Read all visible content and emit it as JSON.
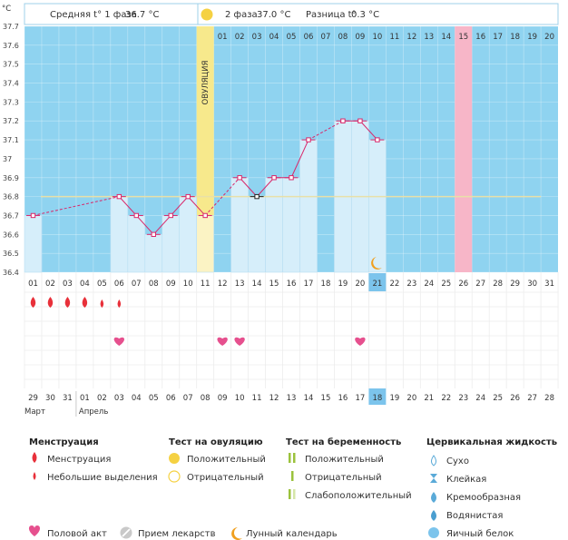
{
  "header": {
    "unit": "°C",
    "phase1_label": "Средняя t° 1 фаза",
    "phase1_value": "36.7 °C",
    "phase2_label": "2 фаза",
    "phase2_value": "37.0 °C",
    "diff_label": "Разница t°",
    "diff_value": "0.3 °C"
  },
  "ovulation_label": "ОВУЛЯЦИЯ",
  "chart_data": {
    "type": "line",
    "ylim": [
      36.4,
      37.7
    ],
    "y_ticks": [
      "36.4",
      "36.5",
      "36.6",
      "36.7",
      "36.8",
      "36.9",
      "37",
      "37.1",
      "37.2",
      "37.3",
      "37.4",
      "37.5",
      "37.6",
      "37.7"
    ],
    "cycle_days": [
      "01",
      "02",
      "03",
      "04",
      "05",
      "06",
      "07",
      "08",
      "09",
      "10",
      "11",
      "12",
      "13",
      "14",
      "15",
      "16",
      "17",
      "18",
      "19",
      "20",
      "21",
      "22",
      "23",
      "24",
      "25",
      "26",
      "27",
      "28",
      "29",
      "30",
      "31"
    ],
    "top_days": [
      "01",
      "02",
      "03",
      "04",
      "05",
      "06",
      "07",
      "08",
      "09",
      "10",
      "11",
      "12",
      "13",
      "14",
      "15",
      "16",
      "17",
      "18",
      "19",
      "20"
    ],
    "calendar_dates": [
      "29",
      "30",
      "31",
      "01",
      "02",
      "03",
      "04",
      "05",
      "06",
      "07",
      "08",
      "09",
      "10",
      "11",
      "12",
      "13",
      "14",
      "15",
      "16",
      "17",
      "18",
      "19",
      "20",
      "21",
      "22",
      "23",
      "24",
      "25",
      "26",
      "27",
      "28"
    ],
    "calendar_red": [
      4,
      5,
      15,
      16,
      22,
      23
    ],
    "months": [
      "Март",
      "Апрель"
    ],
    "temperatures": [
      {
        "day": 1,
        "value": 36.7
      },
      {
        "day": 6,
        "value": 36.8
      },
      {
        "day": 7,
        "value": 36.7
      },
      {
        "day": 8,
        "value": 36.6
      },
      {
        "day": 9,
        "value": 36.7
      },
      {
        "day": 10,
        "value": 36.8
      },
      {
        "day": 11,
        "value": 36.7
      },
      {
        "day": 13,
        "value": 36.9
      },
      {
        "day": 14,
        "value": 36.8
      },
      {
        "day": 15,
        "value": 36.9
      },
      {
        "day": 16,
        "value": 36.9
      },
      {
        "day": 17,
        "value": 37.1
      },
      {
        "day": 19,
        "value": 37.2
      },
      {
        "day": 20,
        "value": 37.2
      },
      {
        "day": 21,
        "value": 37.1
      }
    ],
    "coverline": 36.8,
    "ovulation_day": 11,
    "today_day": 21,
    "highlight_day_pink": 26,
    "menstruation": [
      {
        "day": 1,
        "size": "large"
      },
      {
        "day": 2,
        "size": "large"
      },
      {
        "day": 3,
        "size": "large"
      },
      {
        "day": 4,
        "size": "large"
      },
      {
        "day": 5,
        "size": "small"
      },
      {
        "day": 6,
        "size": "small"
      }
    ],
    "intercourse_days": [
      6,
      12,
      13,
      20
    ],
    "moon_day": 21
  },
  "legend": {
    "menstruation_title": "Менструация",
    "menstruation_item": "Менструация",
    "spotting_item": "Небольшие выделения",
    "ovulation_test_title": "Тест на овуляцию",
    "ovulation_positive": "Положительный",
    "ovulation_negative": "Отрицательный",
    "pregnancy_test_title": "Тест на беременность",
    "pregnancy_positive": "Положительный",
    "pregnancy_negative": "Отрицательный",
    "pregnancy_weak": "Слабоположительный",
    "cervical_title": "Цервикальная жидкость",
    "cervical_dry": "Сухо",
    "cervical_sticky": "Клейкая",
    "cervical_creamy": "Кремообразная",
    "cervical_watery": "Водянистая",
    "cervical_eggwhite": "Яичный белок",
    "intercourse": "Половой акт",
    "medication": "Прием лекарств",
    "lunar": "Лунный календарь"
  },
  "colors": {
    "sky": "#8fd3f0",
    "bar": "#d6eefa",
    "ovulation": "#f7e98c",
    "pink": "#f7b6c8",
    "line": "#d9276a",
    "drop": "#e8303a",
    "heart": "#e6508e",
    "coverline": "#e8e0a8"
  }
}
